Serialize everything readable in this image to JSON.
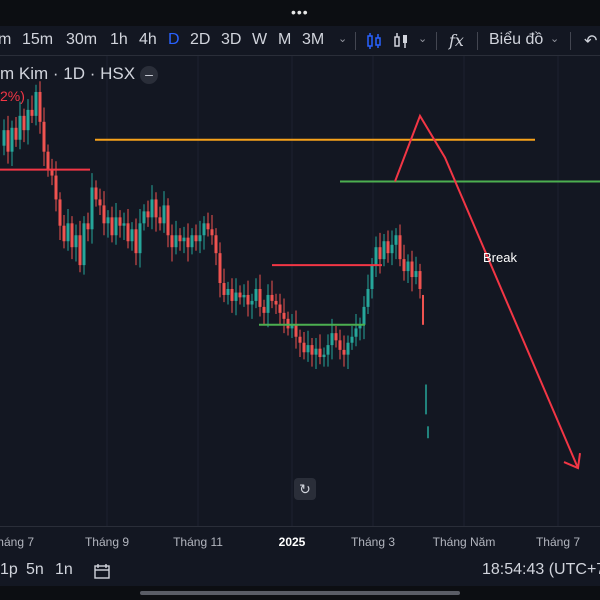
{
  "top": {
    "dots": "•••"
  },
  "toolbar": {
    "intervals": [
      "m",
      "15m",
      "30m",
      "1h",
      "4h",
      "D",
      "2D",
      "3D",
      "W",
      "M",
      "3M"
    ],
    "active_interval": "D",
    "chart_type_label": "Biểu đồ",
    "formula_icon": "fx"
  },
  "legend": {
    "symbol": "m Kim · 1D · HSX",
    "change_fragment": "2%)"
  },
  "annotations": {
    "break_label": "Break"
  },
  "bottombar": {
    "ranges": [
      "1p",
      "5n",
      "1n"
    ],
    "clock": "18:54:43 (UTC+7"
  },
  "colors": {
    "up": "#26a69a",
    "down": "#ef5350",
    "orange_line": "#f7a21b",
    "green_line": "#4caf50",
    "red_line": "#f23645",
    "background": "#131722"
  },
  "chart_data": {
    "type": "candlestick",
    "title": "",
    "xlabel": "",
    "ylabel": "",
    "x_ticks": [
      "Tháng 7",
      "Tháng 9",
      "Tháng 11",
      "2025",
      "Tháng 3",
      "Tháng Năm",
      "Tháng 7"
    ],
    "x_ticks_bold": [
      "2025"
    ],
    "price_path": [
      [
        0,
        105
      ],
      [
        4,
        118
      ],
      [
        8,
        100
      ],
      [
        12,
        120
      ],
      [
        16,
        110
      ],
      [
        20,
        130
      ],
      [
        24,
        118
      ],
      [
        28,
        135
      ],
      [
        32,
        130
      ],
      [
        36,
        150
      ],
      [
        40,
        125
      ],
      [
        44,
        100
      ],
      [
        48,
        85
      ],
      [
        52,
        80
      ],
      [
        56,
        60
      ],
      [
        60,
        38
      ],
      [
        64,
        25
      ],
      [
        68,
        40
      ],
      [
        72,
        20
      ],
      [
        76,
        30
      ],
      [
        80,
        5
      ],
      [
        84,
        40
      ],
      [
        88,
        35
      ],
      [
        92,
        70
      ],
      [
        96,
        60
      ],
      [
        100,
        55
      ],
      [
        104,
        40
      ],
      [
        108,
        45
      ],
      [
        112,
        30
      ],
      [
        116,
        45
      ],
      [
        120,
        38
      ],
      [
        124,
        40
      ],
      [
        128,
        25
      ],
      [
        132,
        35
      ],
      [
        136,
        15
      ],
      [
        140,
        40
      ],
      [
        144,
        50
      ],
      [
        148,
        45
      ],
      [
        152,
        60
      ],
      [
        156,
        45
      ],
      [
        160,
        40
      ],
      [
        164,
        55
      ],
      [
        168,
        30
      ],
      [
        172,
        20
      ],
      [
        176,
        30
      ],
      [
        180,
        25
      ],
      [
        184,
        28
      ],
      [
        188,
        20
      ],
      [
        192,
        30
      ],
      [
        196,
        25
      ],
      [
        200,
        30
      ],
      [
        204,
        40
      ],
      [
        208,
        35
      ],
      [
        212,
        30
      ],
      [
        216,
        15
      ],
      [
        220,
        -10
      ],
      [
        224,
        -20
      ],
      [
        228,
        -15
      ],
      [
        232,
        -25
      ],
      [
        236,
        -18
      ],
      [
        240,
        -22
      ],
      [
        244,
        -20
      ],
      [
        248,
        -28
      ],
      [
        252,
        -25
      ],
      [
        256,
        -15
      ],
      [
        260,
        -30
      ],
      [
        264,
        -35
      ],
      [
        268,
        -20
      ],
      [
        272,
        -25
      ],
      [
        276,
        -28
      ],
      [
        280,
        -35
      ],
      [
        284,
        -40
      ],
      [
        288,
        -48
      ],
      [
        292,
        -45
      ],
      [
        296,
        -55
      ],
      [
        300,
        -60
      ],
      [
        304,
        -68
      ],
      [
        308,
        -62
      ],
      [
        312,
        -70
      ],
      [
        316,
        -65
      ],
      [
        320,
        -72
      ],
      [
        324,
        -70
      ],
      [
        328,
        -62
      ],
      [
        332,
        -52
      ],
      [
        336,
        -58
      ],
      [
        340,
        -66
      ],
      [
        344,
        -70
      ],
      [
        348,
        -60
      ],
      [
        352,
        -55
      ],
      [
        356,
        -48
      ],
      [
        360,
        -45
      ],
      [
        364,
        -30
      ],
      [
        368,
        -15
      ],
      [
        372,
        5
      ],
      [
        376,
        20
      ],
      [
        380,
        10
      ],
      [
        384,
        25
      ],
      [
        388,
        15
      ],
      [
        392,
        22
      ],
      [
        396,
        30
      ],
      [
        400,
        10
      ],
      [
        404,
        0
      ],
      [
        408,
        8
      ],
      [
        412,
        -5
      ],
      [
        416,
        0
      ],
      [
        420,
        -15
      ]
    ],
    "levels": [
      {
        "name": "orange-resistance",
        "y": 110,
        "x_start": 95,
        "x_end": 535,
        "color": "#f7a21b"
      },
      {
        "name": "red-level-left",
        "y": 85,
        "x_start": 0,
        "x_end": 90,
        "color": "#f23645"
      },
      {
        "name": "green-break-level",
        "y": 75,
        "x_start": 340,
        "x_end": 600,
        "color": "#4caf50"
      },
      {
        "name": "red-level-mid",
        "y": 5,
        "x_start": 272,
        "x_end": 382,
        "color": "#f23645"
      },
      {
        "name": "green-level-low",
        "y": -45,
        "x_start": 259,
        "x_end": 365,
        "color": "#4caf50"
      }
    ],
    "forecast_path": [
      [
        395,
        75
      ],
      [
        420,
        130
      ],
      [
        445,
        95
      ],
      [
        578,
        -165
      ]
    ],
    "y_range": [
      -180,
      155
    ],
    "x_range": [
      0,
      600
    ]
  }
}
